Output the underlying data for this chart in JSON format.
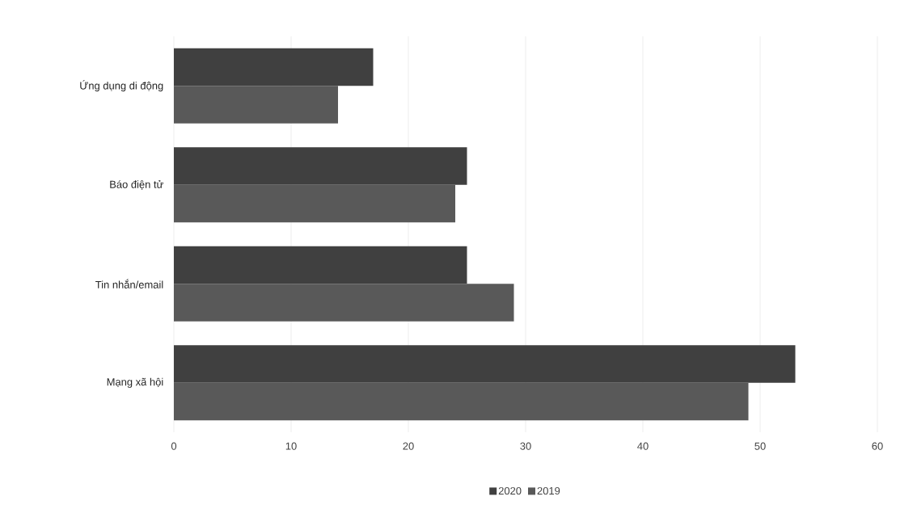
{
  "chart_data": {
    "type": "bar",
    "orientation": "horizontal",
    "categories": [
      "Ứng dụng di động",
      "Báo điện tử",
      "Tin nhắn/email",
      "Mạng xã hội"
    ],
    "series": [
      {
        "name": "2020",
        "color": "#404040",
        "values": [
          17,
          25,
          25,
          53
        ]
      },
      {
        "name": "2019",
        "color": "#595959",
        "values": [
          14,
          24,
          29,
          49
        ]
      }
    ],
    "xlim": [
      0,
      60
    ],
    "xticks": [
      0,
      10,
      20,
      30,
      40,
      50,
      60
    ],
    "grid": "x",
    "legend": "bottom"
  }
}
